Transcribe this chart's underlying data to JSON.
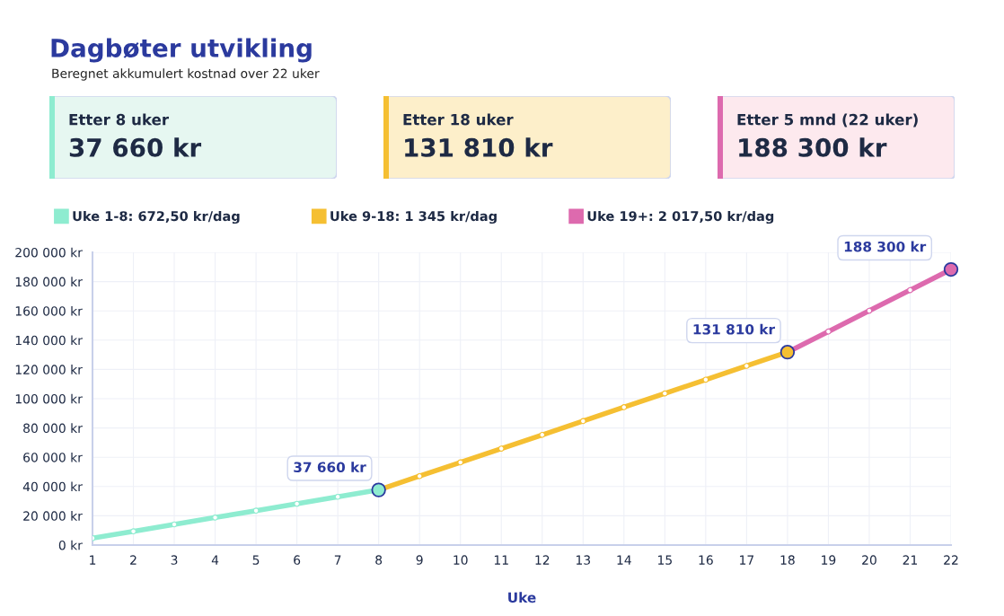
{
  "chart_data": [
    {
      "type": "other",
      "title": "Etter 8 uker",
      "annotations": [
        "37 660 kr"
      ],
      "colors": [
        "#e6f7f1",
        "#8eecd0"
      ]
    },
    {
      "type": "other",
      "title": "Etter 18 uker",
      "annotations": [
        "131 810 kr"
      ],
      "colors": [
        "#fdefca",
        "#f5bf32"
      ]
    },
    {
      "type": "other",
      "title": "Etter 5 mnd (22 uker)",
      "annotations": [
        "188 300 kr"
      ],
      "colors": [
        "#fde9ee",
        "#dd6aae"
      ]
    },
    {
      "type": "line",
      "title": "Dagbøter utvikling",
      "subtitle": "Beregnet akkumulert kostnad over 22 uker",
      "xlabel": "Uke",
      "xlim": [
        1,
        22
      ],
      "xticks": [
        1,
        2,
        3,
        4,
        5,
        6,
        7,
        8,
        9,
        10,
        11,
        12,
        13,
        14,
        15,
        16,
        17,
        18,
        19,
        20,
        21,
        22
      ],
      "ylim": [
        0,
        200000
      ],
      "yticks": [
        {
          "value": 0,
          "label": "0 kr"
        },
        {
          "value": 20000,
          "label": "20 000 kr"
        },
        {
          "value": 40000,
          "label": "40 000 kr"
        },
        {
          "value": 60000,
          "label": "60 000 kr"
        },
        {
          "value": 80000,
          "label": "80 000 kr"
        },
        {
          "value": 100000,
          "label": "100 000 kr"
        },
        {
          "value": 120000,
          "label": "120 000 kr"
        },
        {
          "value": 140000,
          "label": "140 000 kr"
        },
        {
          "value": 160000,
          "label": "160 000 kr"
        },
        {
          "value": 180000,
          "label": "180 000 kr"
        },
        {
          "value": 200000,
          "label": "200 000 kr"
        }
      ],
      "grid": true,
      "legend": "top",
      "marker": "circle",
      "line_style": "solid",
      "series": [
        {
          "name": "Uke 1-8: 672,50 kr/dag",
          "color": "#8eecd0",
          "x": [
            1,
            2,
            3,
            4,
            5,
            6,
            7,
            8
          ],
          "values": [
            4700,
            9400,
            14100,
            18800,
            23500,
            28200,
            33000,
            37660
          ]
        },
        {
          "name": "Uke 9-18: 1 345 kr/dag",
          "color": "#f5bf32",
          "x": [
            8,
            9,
            10,
            11,
            12,
            13,
            14,
            15,
            16,
            17,
            18
          ],
          "values": [
            37660,
            47100,
            56500,
            65900,
            75300,
            84700,
            94200,
            103600,
            113000,
            122400,
            131810
          ]
        },
        {
          "name": "Uke 19+: 2 017,50 kr/dag",
          "color": "#dd6aae",
          "x": [
            18,
            19,
            20,
            21,
            22
          ],
          "values": [
            131810,
            145900,
            160100,
            174200,
            188300
          ]
        },
        {
          "type": "scatter",
          "x": [
            8,
            18,
            22
          ],
          "values": [
            37660,
            131810,
            188300
          ],
          "colors": [
            "#8eecd0",
            "#f5bf32",
            "#dd6aae"
          ]
        }
      ],
      "annotations": [
        {
          "text": "37 660 kr",
          "x": 8,
          "y": 37660
        },
        {
          "text": "131 810 kr",
          "x": 18,
          "y": 131810
        },
        {
          "text": "188 300 kr",
          "x": 22,
          "y": 188300
        }
      ]
    }
  ]
}
